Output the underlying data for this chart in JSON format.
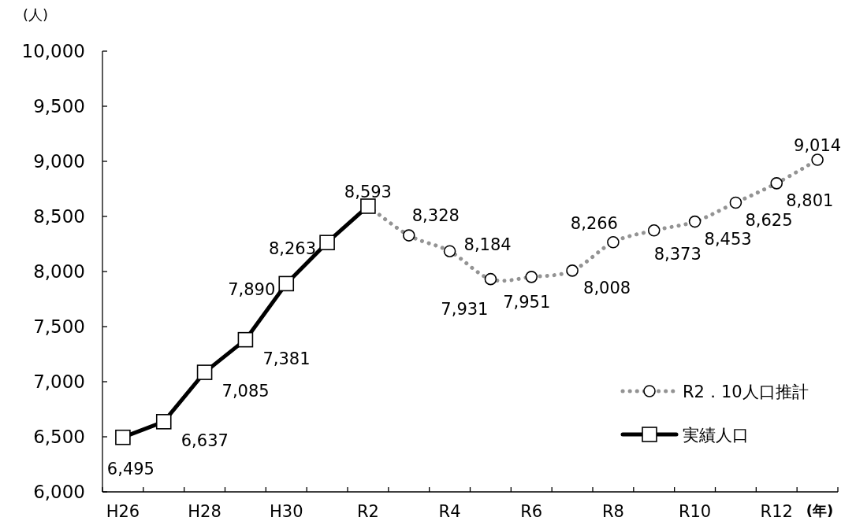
{
  "chart_data": {
    "type": "line",
    "xlabel": "(年)",
    "ylabel": "(人)",
    "categories": [
      "H26",
      null,
      "H28",
      null,
      "H30",
      null,
      "R2",
      null,
      "R4",
      null,
      "R6",
      null,
      "R8",
      null,
      "R10",
      null,
      "R12",
      null
    ],
    "ylim": [
      6000,
      10000
    ],
    "yticks": [
      {
        "value": 6000,
        "label": "6,000"
      },
      {
        "value": 6500,
        "label": "6,500"
      },
      {
        "value": 7000,
        "label": "7,000"
      },
      {
        "value": 7500,
        "label": "7,500"
      },
      {
        "value": 8000,
        "label": "8,000"
      },
      {
        "value": 8500,
        "label": "8,500"
      },
      {
        "value": 9000,
        "label": "9,000"
      },
      {
        "value": 9500,
        "label": "9,500"
      },
      {
        "value": 10000,
        "label": "10,000"
      }
    ],
    "legend": "bottom right",
    "series": [
      {
        "name": "R2．10人口推計",
        "color": "#939393",
        "line_style": "dotted",
        "marker": "circle",
        "values": [
          null,
          null,
          null,
          null,
          null,
          null,
          8593,
          8328,
          8184,
          7931,
          7951,
          8008,
          8266,
          8373,
          8453,
          8625,
          8801,
          9014
        ],
        "value_labels": [
          null,
          null,
          null,
          null,
          null,
          null,
          null,
          "8,328",
          "8,184",
          "7,931",
          "7,951",
          "8,008",
          "8,266",
          "8,373",
          "8,453",
          "8,625",
          "8,801",
          "9,014"
        ]
      },
      {
        "name": "実績人口",
        "color": "#000000",
        "line_style": "solid",
        "marker": "square",
        "values": [
          6495,
          6637,
          7085,
          7381,
          7890,
          8263,
          8593,
          null,
          null,
          null,
          null,
          null,
          null,
          null,
          null,
          null,
          null,
          null
        ],
        "value_labels": [
          "6,495",
          "6,637",
          "7,085",
          "7,381",
          "7,890",
          "8,263",
          "8,593",
          null,
          null,
          null,
          null,
          null,
          null,
          null,
          null,
          null,
          null,
          null
        ]
      }
    ]
  }
}
